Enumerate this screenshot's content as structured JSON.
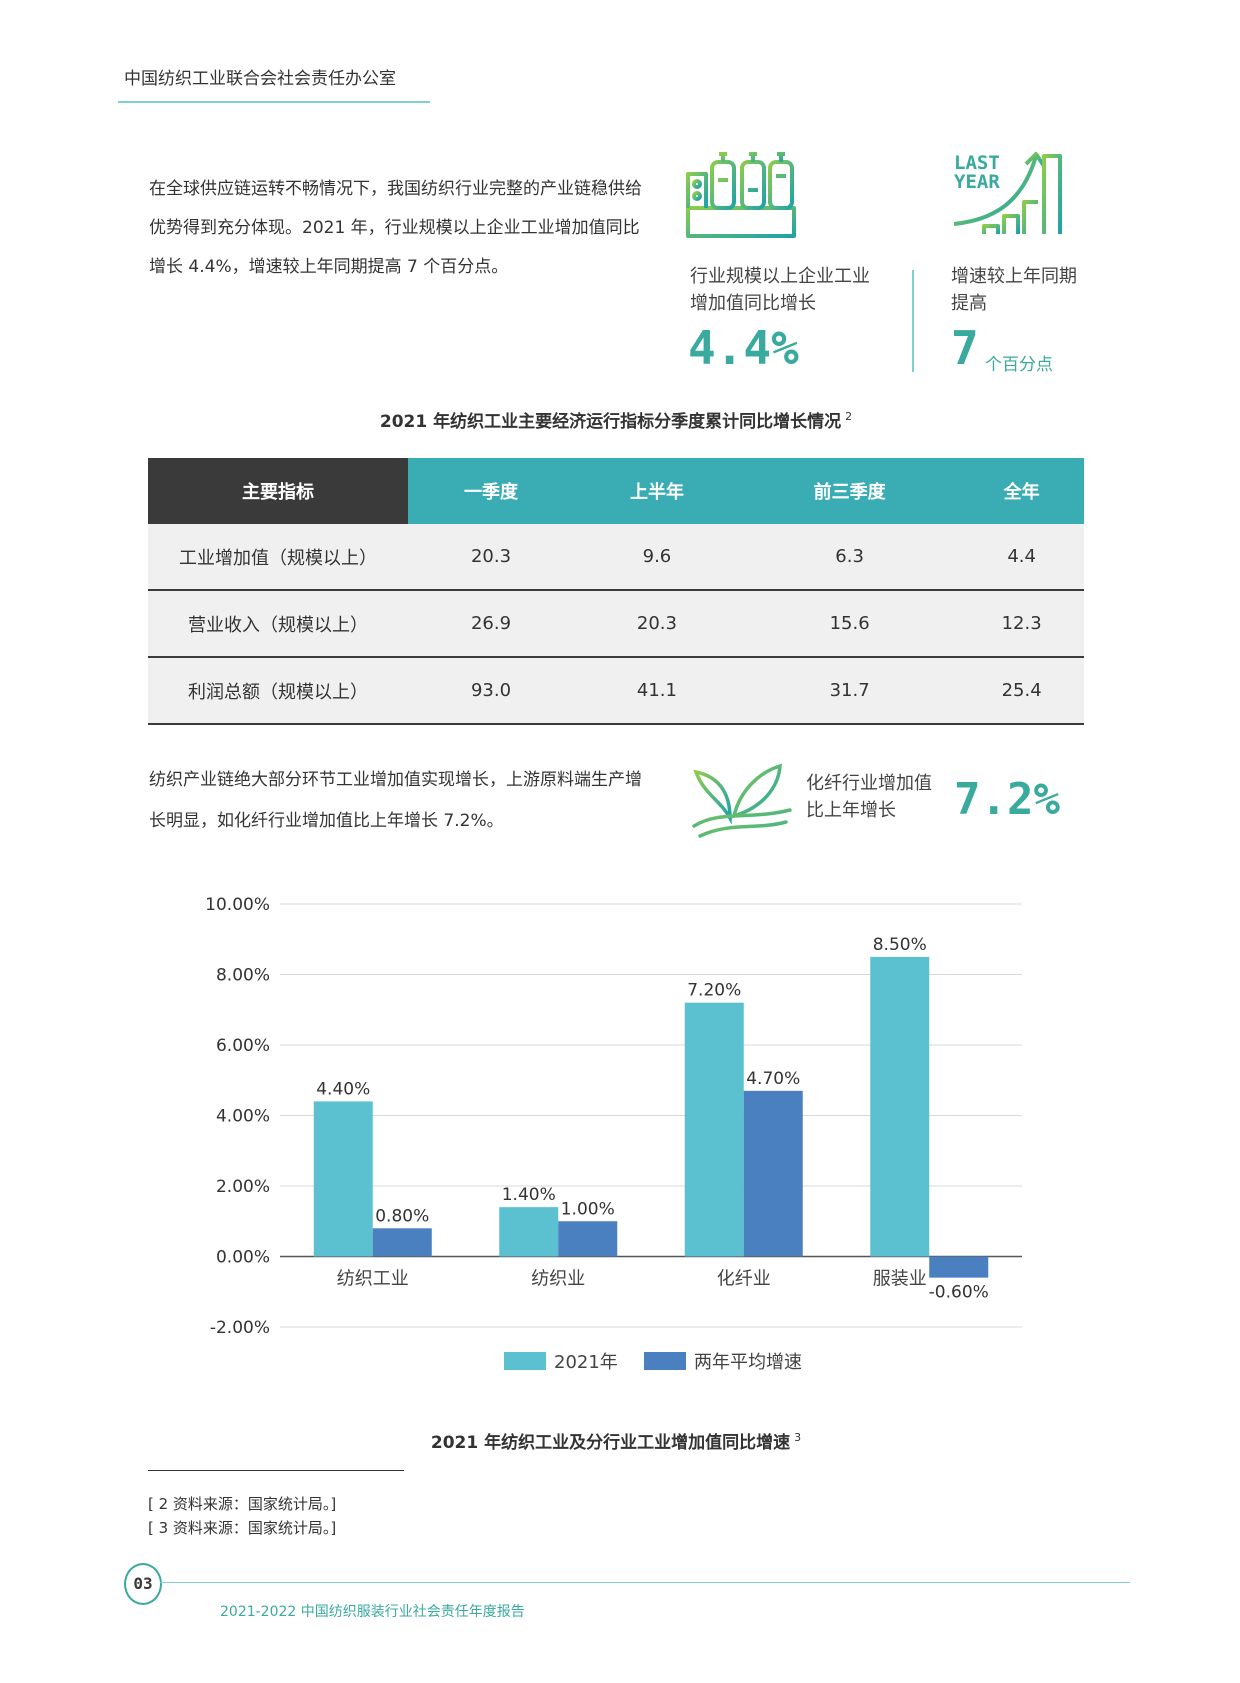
{
  "header": {
    "org": "中国纺织工业联合会社会责任办公室"
  },
  "intro": {
    "paragraph": "在全球供应链运转不畅情况下，我国纺织行业完整的产业链稳供给优势得到充分体现。2021 年，行业规模以上企业工业增加值同比增长 4.4%，增速较上年同期提高 7 个百分点。"
  },
  "stats": {
    "icon1": "factory-icon",
    "icon2": "growth-chart-icon",
    "last_year_text_1": "LAST",
    "last_year_text_2": "YEAR",
    "s1_label_1": "行业规模以上企业工业",
    "s1_label_2": "增加值同比增长",
    "s1_value": "4.4%",
    "s2_label_1": "增速较上年同期",
    "s2_label_2": "提高",
    "s2_value": "7",
    "s2_unit": "个百分点"
  },
  "table": {
    "caption": "2021 年纺织工业主要经济运行指标分季度累计同比增长情况",
    "caption_note": "2",
    "headers": [
      "主要指标",
      "一季度",
      "上半年",
      "前三季度",
      "全年"
    ],
    "rows": [
      [
        "工业增加值（规模以上）",
        "20.3",
        "9.6",
        "6.3",
        "4.4"
      ],
      [
        "营业收入（规模以上）",
        "26.9",
        "20.3",
        "15.6",
        "12.3"
      ],
      [
        "利润总额（规模以上）",
        "93.0",
        "41.1",
        "31.7",
        "25.4"
      ]
    ]
  },
  "para2": {
    "text": "纺织产业链绝大部分环节工业增加值实现增长，上游原料端生产增长明显，如化纤行业增加值比上年增长 7.2%。"
  },
  "fiber": {
    "icon": "leaf-icon",
    "label_1": "化纤行业增加值",
    "label_2": "比上年增长",
    "value": "7.2%"
  },
  "chart_data": {
    "type": "bar",
    "categories": [
      "纺织工业",
      "纺织业",
      "化纤业",
      "服装业"
    ],
    "series": [
      {
        "name": "2021年",
        "values": [
          4.4,
          1.4,
          7.2,
          8.5
        ],
        "labels": [
          "4.40%",
          "1.40%",
          "7.20%",
          "8.50%"
        ],
        "color": "#5bc0cf"
      },
      {
        "name": "两年平均增速",
        "values": [
          0.8,
          1.0,
          4.7,
          -0.6
        ],
        "labels": [
          "0.80%",
          "1.00%",
          "4.70%",
          "-0.60%"
        ],
        "color": "#4a7fc0"
      }
    ],
    "ylim": [
      -2,
      10
    ],
    "yticks": [
      10,
      8,
      6,
      4,
      2,
      0,
      -2
    ],
    "ytick_labels": [
      "10.00%",
      "8.00%",
      "6.00%",
      "4.00%",
      "2.00%",
      "0.00%",
      "-2.00%"
    ],
    "grid": true,
    "legend": "bottom",
    "caption": "2021 年纺织工业及分行业工业增加值同比增速",
    "caption_note": "3"
  },
  "footnotes": [
    "[ 2 资料来源：国家统计局。]",
    "[ 3 资料来源：国家统计局。]"
  ],
  "footer": {
    "page": "03",
    "report": "2021-2022 中国纺织服装行业社会责任年度报告"
  }
}
